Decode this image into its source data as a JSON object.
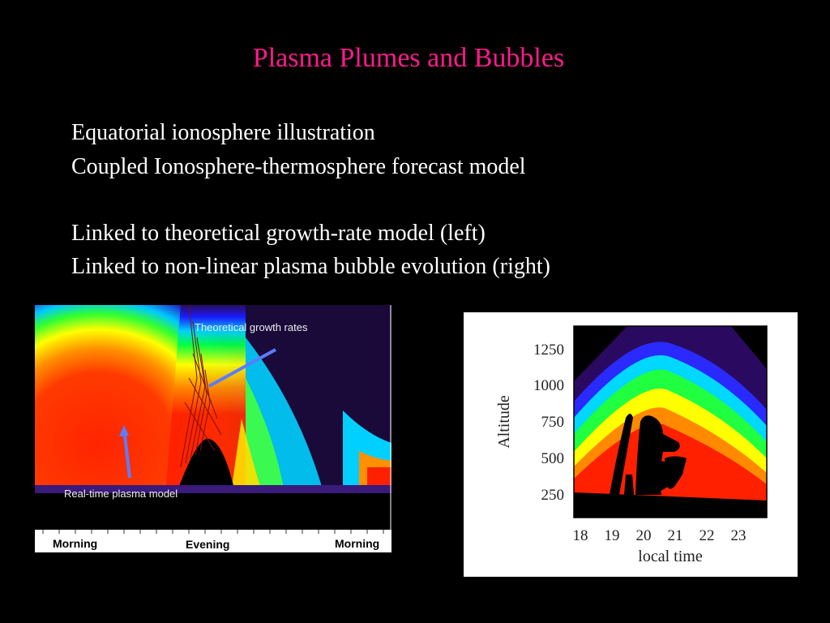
{
  "slide": {
    "title": "Plasma Plumes and Bubbles",
    "lines": [
      "Equatorial ionosphere illustration",
      "Coupled Ionosphere-thermosphere forecast model",
      "Linked to theoretical growth-rate model (left)",
      "Linked to non-linear plasma bubble evolution (right)"
    ],
    "title_color": "#ff1a8c"
  },
  "left_figure": {
    "annotation_top": "Theoretical growth rates",
    "annotation_bottom": "Real-time plasma model",
    "time_labels": [
      "Morning",
      "Evening",
      "Morning"
    ],
    "arrow_color": "#5b7cff"
  },
  "right_figure": {
    "ylabel": "Altitude",
    "xlabel": "local time",
    "yticks": [
      "1250",
      "1000",
      "750",
      "500",
      "250"
    ],
    "xticks": [
      "18",
      "19",
      "20",
      "21",
      "22",
      "23"
    ]
  }
}
